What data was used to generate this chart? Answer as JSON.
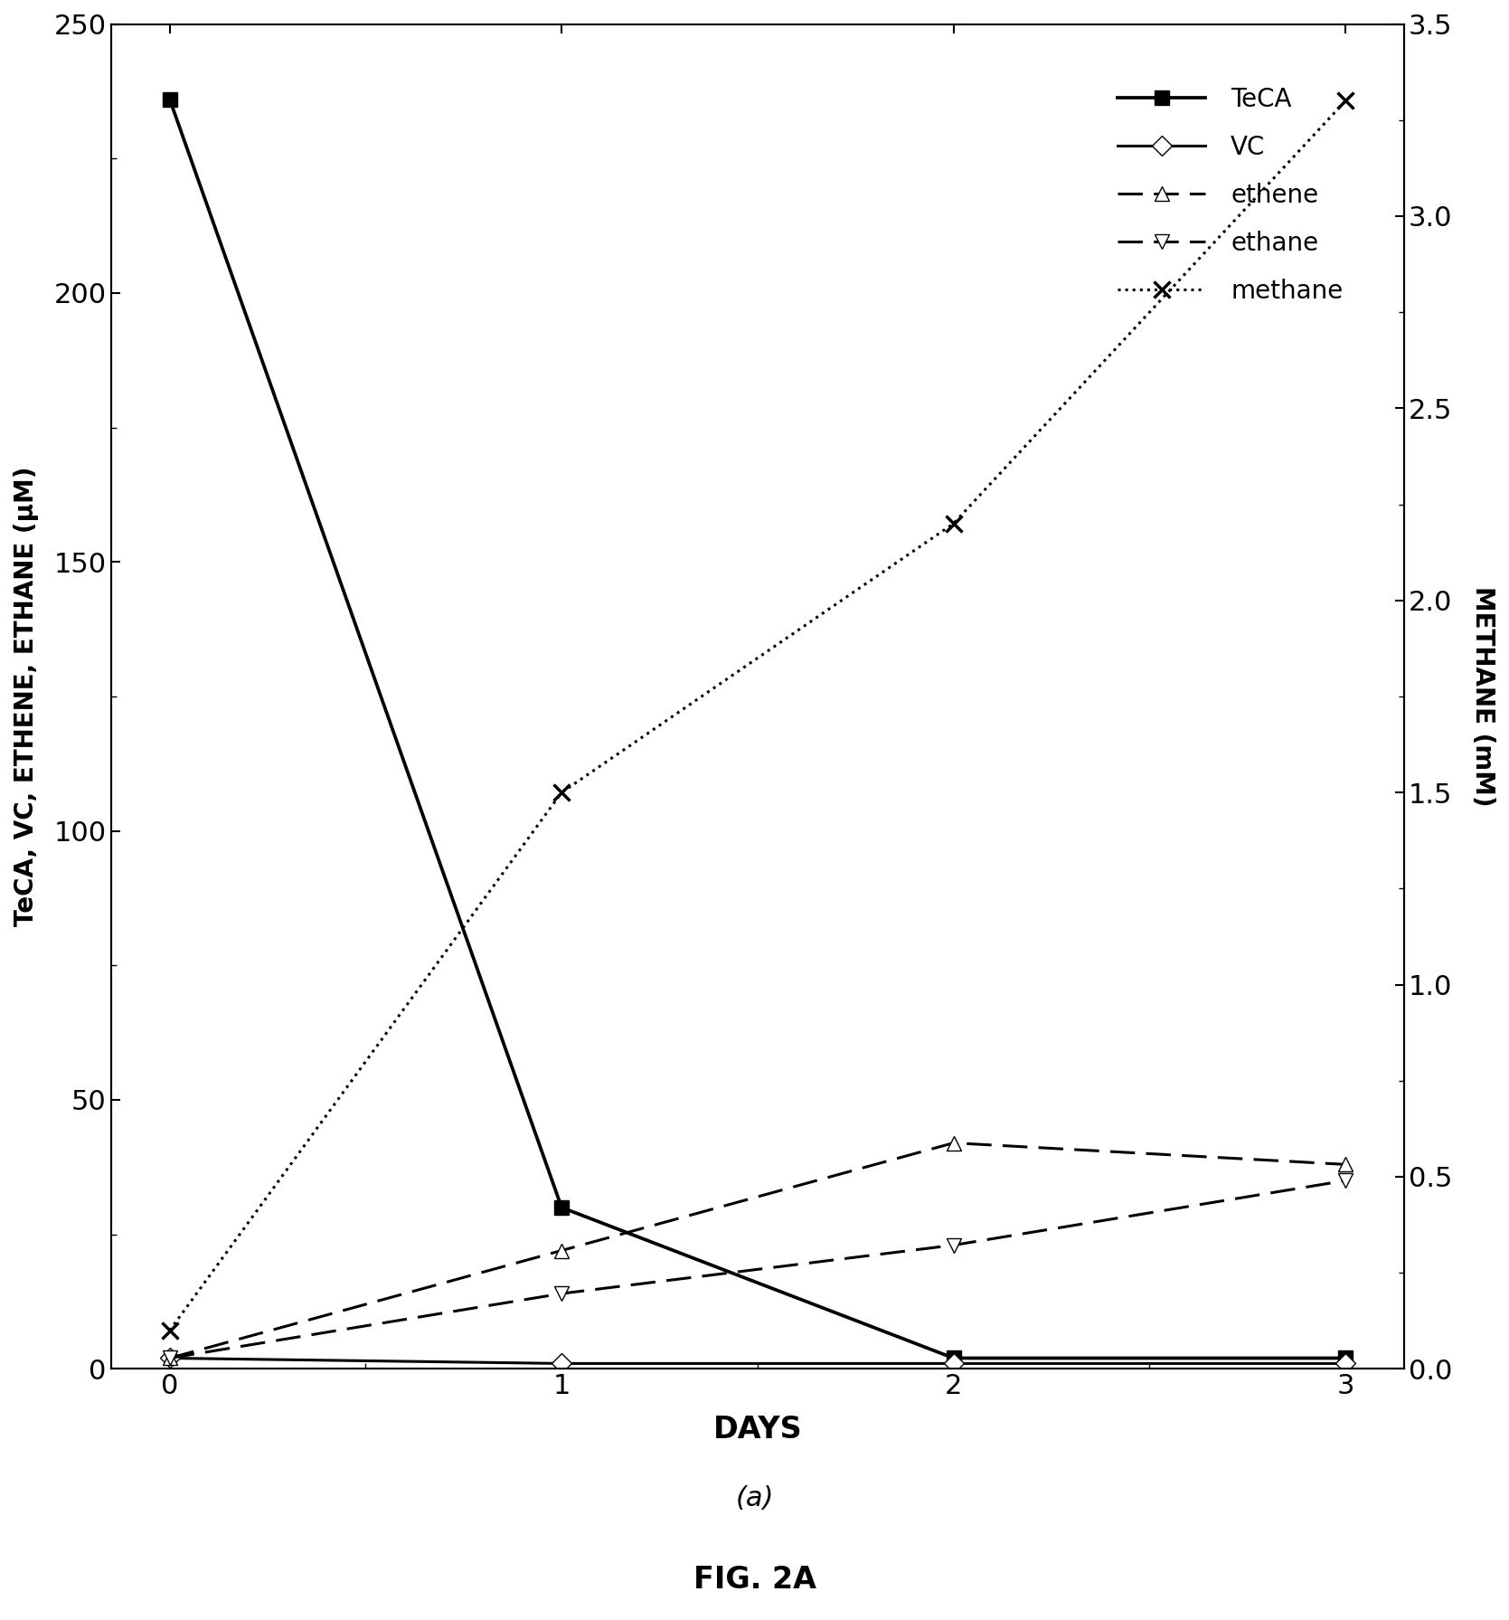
{
  "days": [
    0,
    1,
    2,
    3
  ],
  "TeCA": [
    236,
    30,
    2,
    2
  ],
  "VC": [
    2,
    1,
    1,
    1
  ],
  "ethene": [
    2,
    22,
    42,
    38
  ],
  "ethane": [
    2,
    14,
    23,
    35
  ],
  "methane_mM": [
    0.1,
    1.5,
    2.2,
    3.3
  ],
  "ylim_left": [
    0,
    250
  ],
  "ylim_right": [
    0,
    3.5
  ],
  "yticks_left": [
    0,
    50,
    100,
    150,
    200,
    250
  ],
  "yticks_right": [
    0,
    0.5,
    1.0,
    1.5,
    2.0,
    2.5,
    3.0,
    3.5
  ],
  "xlabel": "DAYS",
  "ylabel_left": "TeCA, VC, ETHENE, ETHANE (μM)",
  "ylabel_right": "METHANE (mM)",
  "subtitle": "(a)",
  "fig_label": "FIG. 2A",
  "legend_labels": [
    "TeCA",
    "VC",
    "ethene",
    "ethane",
    "methane"
  ],
  "background_color": "#ffffff",
  "line_color": "#000000"
}
